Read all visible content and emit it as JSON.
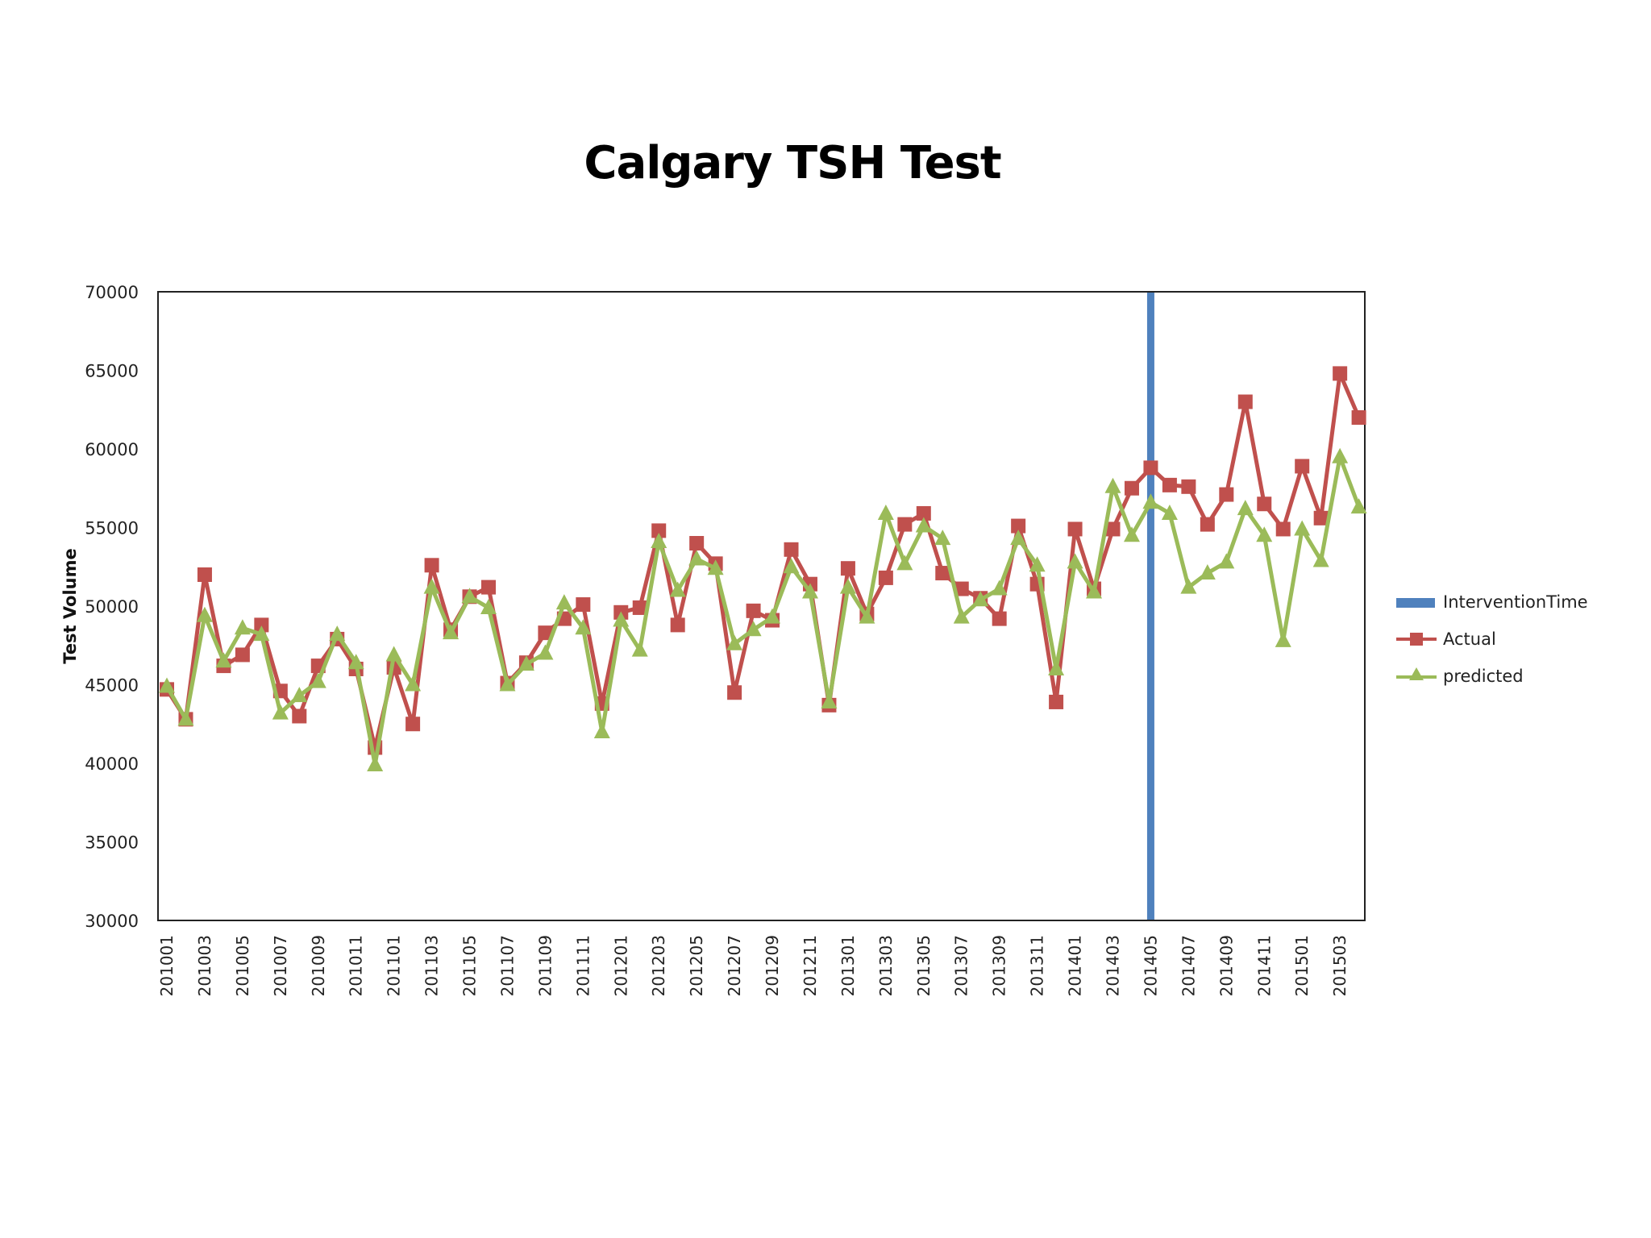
{
  "chart_data": {
    "type": "line",
    "title": "Calgary TSH Test",
    "xlabel": "",
    "ylabel": "Test Volume",
    "ylim": [
      30000,
      70000
    ],
    "yticks": [
      30000,
      35000,
      40000,
      45000,
      50000,
      55000,
      60000,
      65000,
      70000
    ],
    "grid": false,
    "legend_position": "right",
    "x": [
      "201001",
      "201002",
      "201003",
      "201004",
      "201005",
      "201006",
      "201007",
      "201008",
      "201009",
      "201010",
      "201011",
      "201012",
      "201101",
      "201102",
      "201103",
      "201104",
      "201105",
      "201106",
      "201107",
      "201108",
      "201109",
      "201110",
      "201111",
      "201112",
      "201201",
      "201202",
      "201203",
      "201204",
      "201205",
      "201206",
      "201207",
      "201208",
      "201209",
      "201210",
      "201211",
      "201212",
      "201301",
      "201302",
      "201303",
      "201304",
      "201305",
      "201306",
      "201307",
      "201308",
      "201309",
      "201310",
      "201311",
      "201312",
      "201401",
      "201402",
      "201403",
      "201404",
      "201405",
      "201406",
      "201407",
      "201408",
      "201409",
      "201410",
      "201411",
      "201412",
      "201501",
      "201502",
      "201503",
      "201504"
    ],
    "xtick_labels": [
      "201001",
      "201003",
      "201005",
      "201007",
      "201009",
      "201011",
      "201101",
      "201103",
      "201105",
      "201107",
      "201109",
      "201111",
      "201201",
      "201203",
      "201205",
      "201207",
      "201209",
      "201211",
      "201301",
      "201303",
      "201305",
      "201307",
      "201309",
      "201311",
      "201401",
      "201403",
      "201405",
      "201407",
      "201409",
      "201411",
      "201501",
      "201503"
    ],
    "series": [
      {
        "name": "Actual",
        "color": "#C0504D",
        "marker": "square",
        "values": [
          44700,
          42800,
          52000,
          46200,
          46900,
          48800,
          44600,
          43000,
          46200,
          47900,
          46000,
          41000,
          46100,
          42500,
          52600,
          48500,
          50600,
          51200,
          45100,
          46400,
          48300,
          49200,
          50100,
          43800,
          49600,
          49900,
          54800,
          48800,
          54000,
          52700,
          44500,
          49700,
          49100,
          53600,
          51400,
          43700,
          52400,
          49500,
          51800,
          55200,
          55900,
          52100,
          51100,
          50500,
          49200,
          55100,
          51400,
          43900,
          54900,
          51100,
          54900,
          57500,
          58800,
          57700,
          57600,
          55200,
          57100,
          63000,
          56500,
          54900,
          58900,
          55600,
          64800,
          62000
        ]
      },
      {
        "name": "predicted",
        "color": "#9BBB59",
        "marker": "triangle",
        "values": [
          44900,
          42800,
          49400,
          46500,
          48600,
          48200,
          43200,
          44300,
          45200,
          48200,
          46400,
          39900,
          46900,
          45000,
          51200,
          48300,
          50600,
          49900,
          45000,
          46300,
          47000,
          50200,
          48600,
          42000,
          49100,
          47200,
          54100,
          51000,
          53000,
          52400,
          47600,
          48500,
          49300,
          52500,
          50900,
          43900,
          51200,
          49300,
          55900,
          52700,
          55100,
          54300,
          49300,
          50400,
          51100,
          54300,
          52600,
          46000,
          52800,
          50900,
          57600,
          54500,
          56600,
          55900,
          51200,
          52100,
          52800,
          56200,
          54500,
          47800,
          54900,
          52900,
          59500,
          56300
        ]
      },
      {
        "name": "InterventionTime",
        "color": "#4F81BD",
        "type": "vertical-line",
        "x": "201405"
      }
    ]
  },
  "legend": {
    "items": [
      {
        "label": "InterventionTime",
        "color": "#4F81BD",
        "kind": "bar"
      },
      {
        "label": "Actual",
        "color": "#C0504D",
        "kind": "square"
      },
      {
        "label": "predicted",
        "color": "#9BBB59",
        "kind": "triangle"
      }
    ]
  }
}
